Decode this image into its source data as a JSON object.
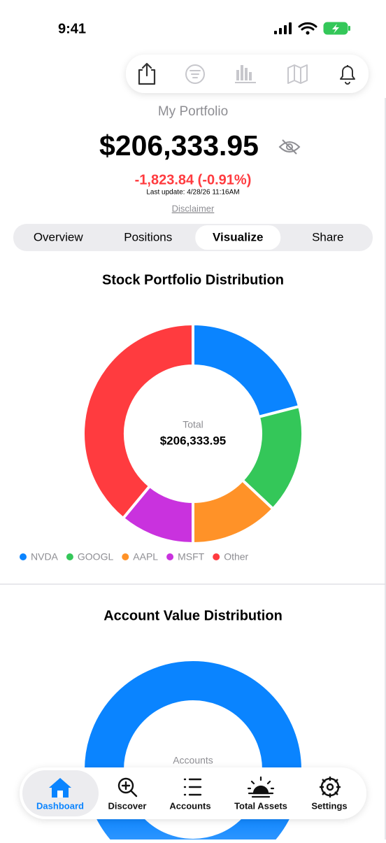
{
  "status_bar": {
    "time": "9:41"
  },
  "header": {
    "title": "My Portfolio",
    "value": "$206,333.95",
    "change": "-1,823.84 (-0.91%)",
    "last_update": "Last update: 4/28/26 11:16AM",
    "disclaimer": "Disclaimer"
  },
  "tabs": {
    "items": [
      "Overview",
      "Positions",
      "Visualize",
      "Share"
    ],
    "selected_index": 2
  },
  "chart_data": [
    {
      "type": "donut",
      "title": "Stock Portfolio Distribution",
      "categories": [
        "NVDA",
        "GOOGL",
        "AAPL",
        "MSFT",
        "Other"
      ],
      "values": [
        21,
        16,
        13,
        11,
        39
      ],
      "colors": [
        "#0a84ff",
        "#34c759",
        "#ff9228",
        "#c932de",
        "#ff3b3f"
      ],
      "center_label": "Total",
      "center_value": "$206,333.95",
      "legend": "bottom-left"
    },
    {
      "type": "donut",
      "title": "Account Value Distribution",
      "values": [
        100
      ],
      "colors": [
        "#0a84ff"
      ],
      "center_label": "Accounts"
    }
  ],
  "tab_bar": {
    "items": [
      "Dashboard",
      "Discover",
      "Accounts",
      "Total Assets",
      "Settings"
    ],
    "selected_index": 0
  }
}
